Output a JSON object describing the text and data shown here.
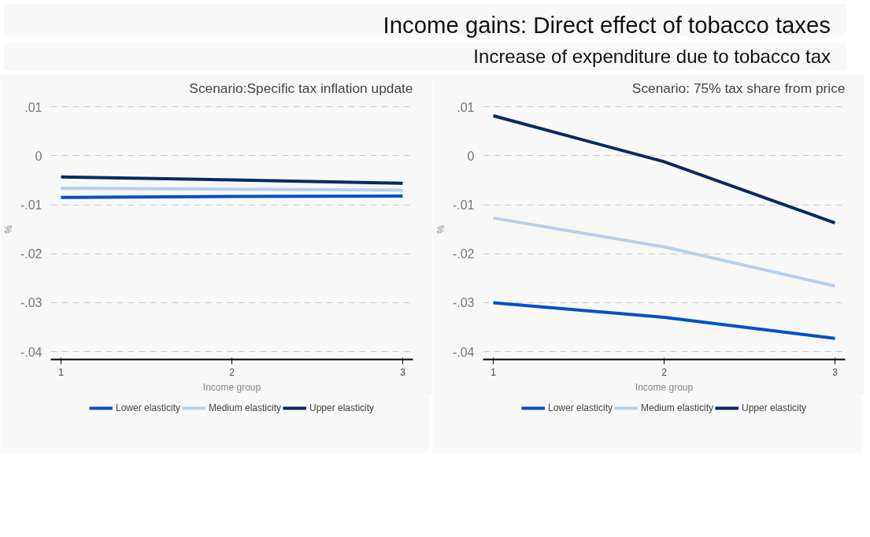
{
  "chart_data": [
    {
      "type": "line",
      "title": "Scenario:Specific tax inflation update",
      "annotations": [
        "Income gains: Direct effect of tobacco taxes",
        "Increase of expenditure due to tobacco tax"
      ],
      "xlabel": "Income group",
      "ylabel": "%",
      "x": [
        1,
        2,
        3
      ],
      "xlim": [
        0.94,
        3.06
      ],
      "xticks": [
        1,
        2,
        3
      ],
      "ylim": [
        -0.0416,
        0.0115
      ],
      "yticks": [
        {
          "value": 0.01,
          "label": ".01"
        },
        0,
        {
          "value": -0.01,
          "label": "-.01"
        },
        {
          "value": -0.02,
          "label": "-.02"
        },
        {
          "value": -0.03,
          "label": "-.03"
        },
        {
          "value": -0.04,
          "label": "-.04"
        }
      ],
      "grid": "y",
      "legend": "bottom",
      "line_style": "solid",
      "series": [
        {
          "name": "Lower elasticity",
          "color": "#0050c8",
          "values": [
            -0.0085,
            -0.0083,
            -0.0082
          ]
        },
        {
          "name": "Medium elasticity",
          "color": "#b8d0f0",
          "values": [
            -0.0066,
            -0.0068,
            -0.007
          ]
        },
        {
          "name": "Upper elasticity",
          "color": "#0a2a5c",
          "values": [
            -0.0043,
            -0.0049,
            -0.0056
          ]
        }
      ]
    },
    {
      "type": "line",
      "title": "Scenario: 75% tax share from price",
      "xlabel": "Income group",
      "ylabel": "%",
      "x": [
        1,
        2,
        3
      ],
      "xlim": [
        0.94,
        3.06
      ],
      "xticks": [
        1,
        2,
        3
      ],
      "ylim": [
        -0.0416,
        0.0115
      ],
      "yticks": [
        {
          "value": 0.01,
          "label": ".01"
        },
        0,
        {
          "value": -0.01,
          "label": "-.01"
        },
        {
          "value": -0.02,
          "label": "-.02"
        },
        {
          "value": -0.03,
          "label": "-.03"
        },
        {
          "value": -0.04,
          "label": "-.04"
        }
      ],
      "grid": "y",
      "legend": "bottom",
      "line_style": "solid",
      "series": [
        {
          "name": "Lower elasticity",
          "color": "#0050c8",
          "values": [
            -0.03,
            -0.033,
            -0.0373
          ]
        },
        {
          "name": "Medium elasticity",
          "color": "#b8d0f0",
          "values": [
            -0.0127,
            -0.0186,
            -0.0266
          ]
        },
        {
          "name": "Upper elasticity",
          "color": "#0a2a5c",
          "values": [
            0.0082,
            -0.0012,
            -0.0137
          ]
        }
      ]
    }
  ]
}
